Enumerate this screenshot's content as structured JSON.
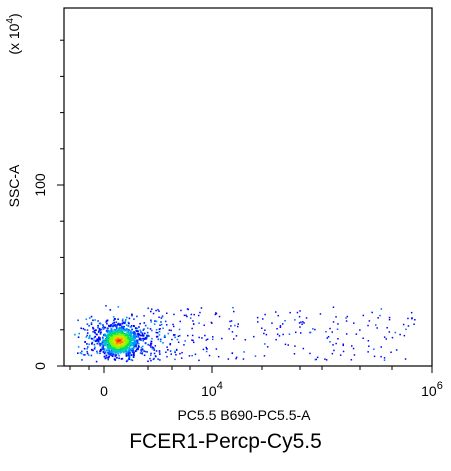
{
  "chart_data": {
    "type": "scatter",
    "title": "FCER1-Percp-Cy5.5",
    "xlabel": "PC5.5 B690-PC5.5-A",
    "ylabel": "SSC-A",
    "y_multiplier": "(x 10^4)",
    "x_scale": "biexponential",
    "x_ticks": [
      {
        "label": "0",
        "value": 0
      },
      {
        "label": "10^4",
        "value": 10000
      },
      {
        "label": "10^6",
        "value": 1000000
      }
    ],
    "y_ticks": [
      {
        "label": "0",
        "value": 0
      },
      {
        "label": "100",
        "value": 100
      }
    ],
    "ylim": [
      0,
      185
    ],
    "color_scale": "density (blue-green-yellow-red)",
    "population": {
      "x_core_range": [
        -400,
        2500
      ],
      "y_core_range": [
        5,
        25
      ],
      "x_tail_max": 700000,
      "y_max": 33
    },
    "grid": false
  }
}
